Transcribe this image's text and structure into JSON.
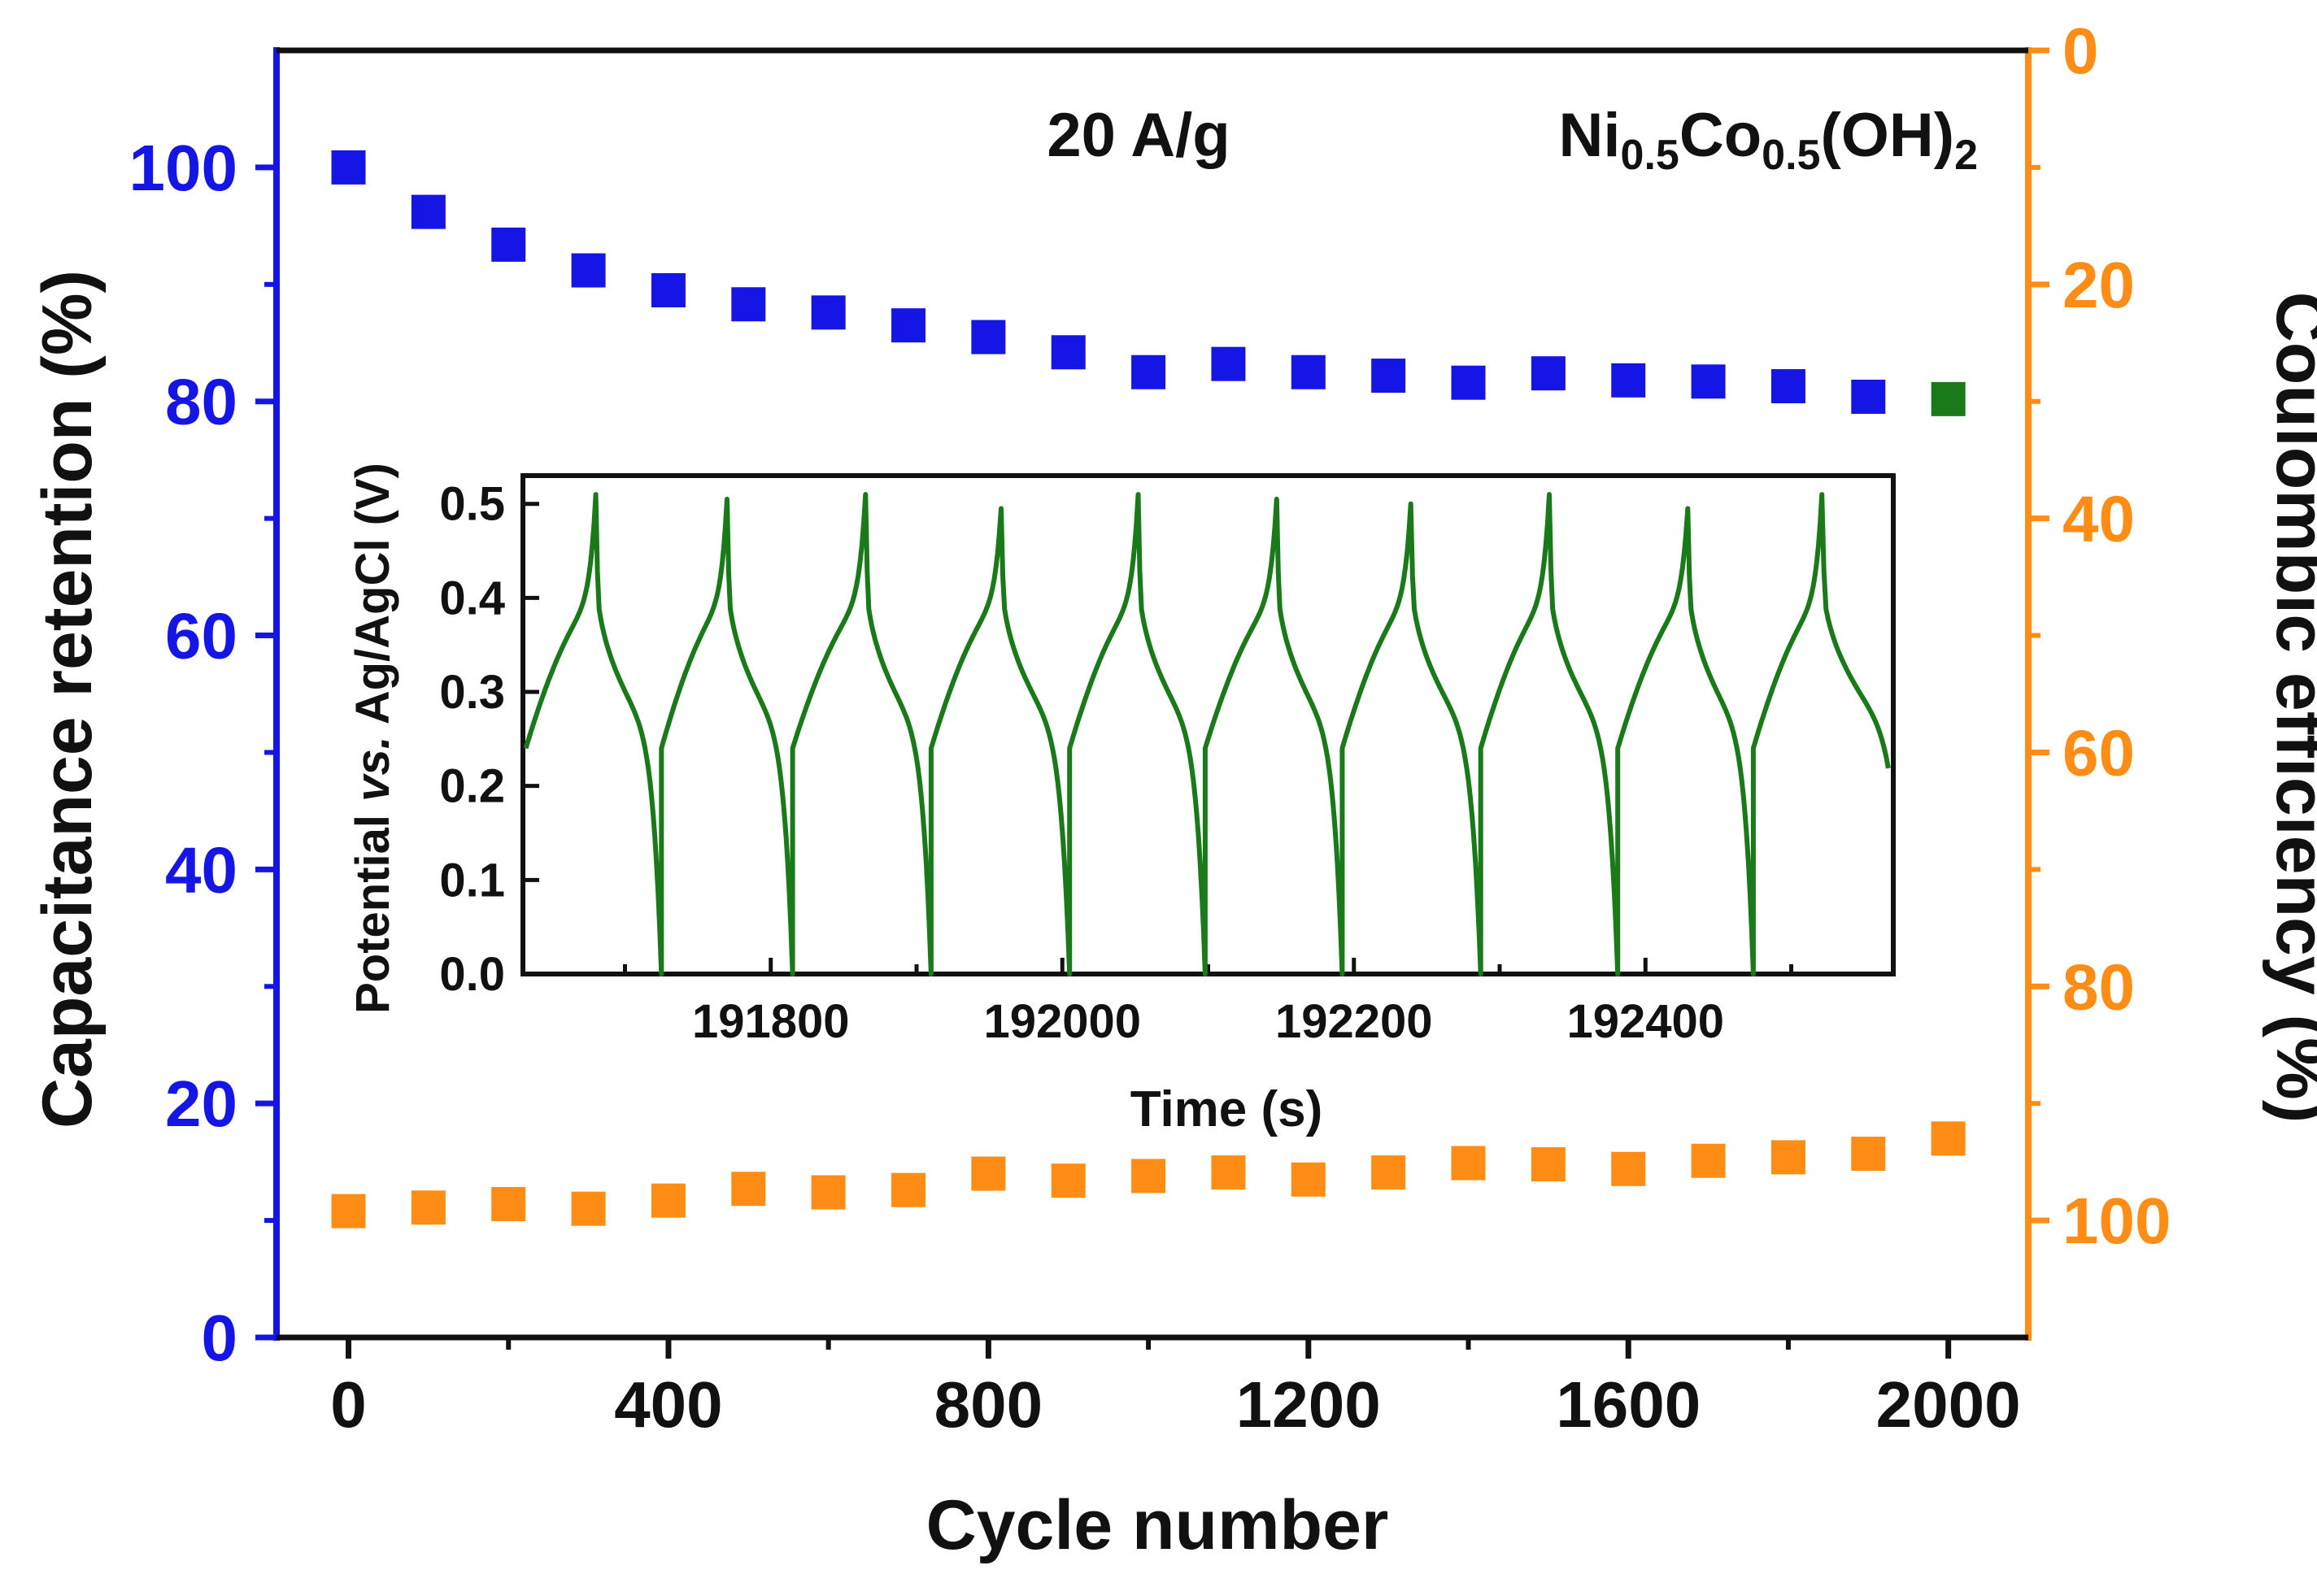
{
  "colors": {
    "left_axis": "#1515e6",
    "right_axis": "#ff8c14",
    "retention_marker": "#1515e6",
    "retention_last_marker": "#1a7a1a",
    "efficiency_marker": "#ff8c14",
    "inset_line": "#1a7a1a",
    "text": "#111111"
  },
  "chart_data": [
    {
      "type": "scatter",
      "title": "",
      "annotations": {
        "rate": "20 A/g",
        "material_main": "Ni",
        "material_sub1": "0.5",
        "material_mid": "Co",
        "material_sub2": "0.5",
        "material_tail": "(OH)",
        "material_sub3": "2"
      },
      "xlabel": "Cycle number",
      "xlim": [
        -90,
        2100
      ],
      "xticks": [
        0,
        400,
        800,
        1200,
        1600,
        2000
      ],
      "xminor": [
        200,
        600,
        1000,
        1400,
        1800
      ],
      "ylabel_left": "Capacitance retention (%)",
      "ylim_left": [
        0,
        110
      ],
      "yticks_left": [
        0,
        20,
        40,
        60,
        80,
        100
      ],
      "yminor_left": [
        10,
        30,
        50,
        70,
        90
      ],
      "ylabel_right": "Coulombic efficiency (%)",
      "ylim_right_top": 0,
      "ylim_right_bottom": 110,
      "yticks_right": [
        0,
        20,
        40,
        60,
        80,
        100
      ],
      "yminor_right": [
        10,
        30,
        50,
        70,
        90
      ],
      "series": [
        {
          "name": "Capacitance retention",
          "axis": "left",
          "x": [
            0,
            100,
            200,
            300,
            400,
            500,
            600,
            700,
            800,
            900,
            1000,
            1100,
            1200,
            1300,
            1400,
            1500,
            1600,
            1700,
            1800,
            1900,
            2000
          ],
          "values": [
            100,
            96.2,
            93.4,
            91.2,
            89.5,
            88.3,
            87.6,
            86.5,
            85.5,
            84.2,
            82.5,
            83.2,
            82.5,
            82.2,
            81.6,
            82.4,
            81.8,
            81.7,
            81.3,
            80.4,
            80.2
          ]
        },
        {
          "name": "Coulombic efficiency",
          "axis": "right",
          "x": [
            0,
            100,
            200,
            300,
            400,
            500,
            600,
            700,
            800,
            900,
            1000,
            1100,
            1200,
            1300,
            1400,
            1500,
            1600,
            1700,
            1800,
            1900,
            2000
          ],
          "values": [
            99.2,
            98.9,
            98.6,
            99.0,
            98.3,
            97.3,
            97.6,
            97.4,
            96.0,
            96.6,
            96.2,
            95.9,
            96.5,
            95.9,
            95.1,
            95.2,
            95.6,
            94.9,
            94.6,
            94.3,
            93.0
          ]
        }
      ]
    },
    {
      "type": "line",
      "title": "",
      "xlabel": "Time (s)",
      "ylabel_main": "Potential ",
      "ylabel_italic": "vs.",
      "ylabel_tail": " Ag/AgCl (V)",
      "xlim": [
        191630,
        192570
      ],
      "xticks": [
        191800,
        192000,
        192200,
        192400
      ],
      "xminor": [
        191700,
        191900,
        192100,
        192300,
        192500
      ],
      "ylim": [
        0,
        0.53
      ],
      "yticks": [
        0.0,
        0.1,
        0.2,
        0.3,
        0.4,
        0.5
      ],
      "ytick_labels": [
        "0.0",
        "0.1",
        "0.2",
        "0.3",
        "0.4",
        "0.5"
      ],
      "cycle_start_times": [
        191632,
        191725,
        191815,
        191910,
        192005,
        192098,
        192192,
        192287,
        192381,
        192474
      ],
      "peak_times": [
        191680,
        191770,
        191865,
        191958,
        192052,
        192147,
        192239,
        192334,
        192429,
        192521
      ],
      "peak_values": [
        0.51,
        0.505,
        0.51,
        0.495,
        0.51,
        0.505,
        0.5,
        0.51,
        0.495,
        0.51
      ],
      "end_time": 192568,
      "start_potential": 0.24
    }
  ]
}
